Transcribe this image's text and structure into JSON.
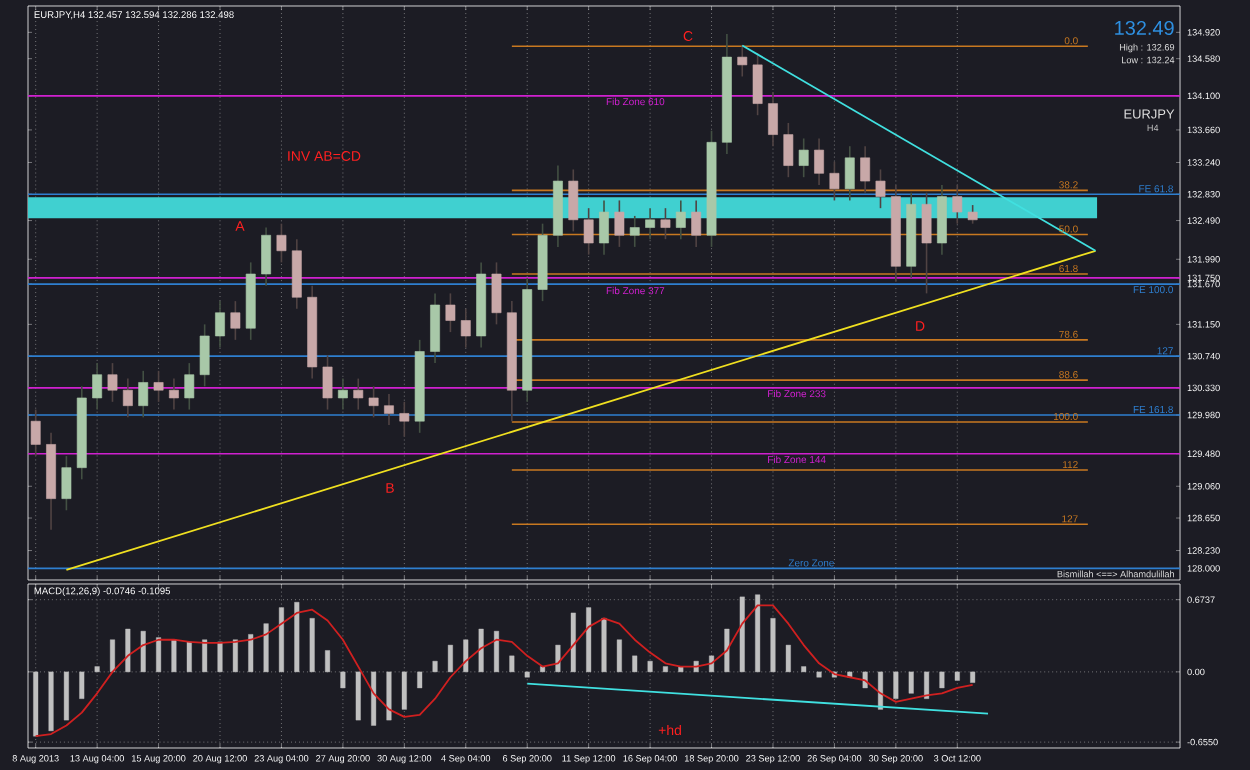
{
  "chart_data": [
    {
      "type": "candlestick",
      "title": "EURJPY,H4  132.457 132.594 132.286 132.498",
      "tick_labels": "y",
      "grid": "x",
      "categories": [
        null,
        null,
        null,
        null,
        null,
        null,
        null,
        null,
        null,
        null,
        null,
        null,
        null,
        null,
        null,
        null,
        null,
        null,
        null,
        null,
        null,
        null,
        null,
        null,
        null,
        null,
        null,
        null,
        null,
        null,
        null,
        null,
        null,
        null,
        null,
        null,
        null,
        null,
        null,
        null,
        null,
        null,
        null,
        null,
        null,
        null,
        null,
        null,
        null,
        null,
        null,
        null,
        null,
        null,
        null,
        null,
        null,
        null,
        null,
        null,
        null,
        null,
        null,
        null,
        null,
        null,
        null,
        null,
        null,
        null,
        null,
        null,
        null,
        null,
        null
      ],
      "ohlc": [
        [
          129.9,
          130.05,
          129.45,
          129.6
        ],
        [
          129.6,
          129.75,
          128.5,
          128.9
        ],
        [
          128.9,
          129.45,
          128.75,
          129.3
        ],
        [
          129.3,
          130.35,
          129.15,
          130.2
        ],
        [
          130.2,
          130.65,
          130.05,
          130.5
        ],
        [
          130.5,
          130.65,
          130.15,
          130.3
        ],
        [
          130.3,
          130.45,
          129.95,
          130.1
        ],
        [
          130.1,
          130.55,
          129.95,
          130.4
        ],
        [
          130.4,
          130.55,
          130.15,
          130.3
        ],
        [
          130.3,
          130.45,
          130.05,
          130.2
        ],
        [
          130.2,
          130.65,
          130.05,
          130.5
        ],
        [
          130.5,
          131.15,
          130.35,
          131.0
        ],
        [
          131.0,
          131.45,
          130.85,
          131.3
        ],
        [
          131.3,
          131.45,
          130.95,
          131.1
        ],
        [
          131.1,
          131.95,
          130.95,
          131.8
        ],
        [
          131.8,
          132.4,
          131.65,
          132.3
        ],
        [
          132.3,
          132.45,
          131.95,
          132.1
        ],
        [
          132.1,
          132.25,
          131.35,
          131.5
        ],
        [
          131.5,
          131.65,
          130.45,
          130.6
        ],
        [
          130.6,
          130.75,
          130.05,
          130.2
        ],
        [
          130.2,
          130.45,
          130.05,
          130.3
        ],
        [
          130.3,
          130.45,
          130.05,
          130.2
        ],
        [
          130.2,
          130.35,
          129.95,
          130.1
        ],
        [
          130.1,
          130.25,
          129.85,
          130.0
        ],
        [
          130.0,
          130.15,
          129.7,
          129.9
        ],
        [
          129.9,
          130.95,
          129.75,
          130.8
        ],
        [
          130.8,
          131.55,
          130.65,
          131.4
        ],
        [
          131.4,
          131.55,
          131.05,
          131.2
        ],
        [
          131.2,
          131.35,
          130.85,
          131.0
        ],
        [
          131.0,
          131.95,
          130.85,
          131.8
        ],
        [
          131.8,
          131.95,
          131.15,
          131.3
        ],
        [
          131.3,
          131.45,
          129.9,
          130.3
        ],
        [
          130.3,
          131.75,
          130.15,
          131.6
        ],
        [
          131.6,
          132.45,
          131.45,
          132.3
        ],
        [
          132.3,
          133.2,
          132.15,
          133.0
        ],
        [
          133.0,
          133.15,
          132.35,
          132.5
        ],
        [
          132.5,
          132.65,
          132.05,
          132.2
        ],
        [
          132.2,
          132.75,
          132.05,
          132.6
        ],
        [
          132.6,
          132.75,
          132.15,
          132.3
        ],
        [
          132.3,
          132.55,
          132.15,
          132.4
        ],
        [
          132.4,
          132.65,
          132.25,
          132.5
        ],
        [
          132.5,
          132.65,
          132.25,
          132.4
        ],
        [
          132.4,
          132.75,
          132.25,
          132.6
        ],
        [
          132.6,
          132.75,
          132.15,
          132.3
        ],
        [
          132.3,
          133.65,
          132.15,
          133.5
        ],
        [
          133.5,
          134.9,
          133.35,
          134.6
        ],
        [
          134.6,
          134.75,
          134.35,
          134.5
        ],
        [
          134.5,
          134.65,
          133.85,
          134.0
        ],
        [
          134.0,
          134.15,
          133.45,
          133.6
        ],
        [
          133.6,
          133.75,
          133.05,
          133.2
        ],
        [
          133.2,
          133.55,
          133.05,
          133.4
        ],
        [
          133.4,
          133.55,
          132.95,
          133.1
        ],
        [
          133.1,
          133.25,
          132.75,
          132.9
        ],
        [
          132.9,
          133.45,
          132.75,
          133.3
        ],
        [
          133.3,
          133.45,
          132.85,
          133.0
        ],
        [
          133.0,
          133.15,
          132.65,
          132.8
        ],
        [
          132.8,
          132.95,
          131.7,
          131.9
        ],
        [
          131.9,
          132.85,
          131.75,
          132.7
        ],
        [
          132.7,
          132.85,
          131.55,
          132.2
        ],
        [
          132.2,
          132.95,
          132.05,
          132.8
        ],
        [
          132.8,
          132.95,
          132.45,
          132.6
        ],
        [
          132.6,
          132.69,
          132.45,
          132.5
        ],
        null,
        null,
        null,
        null,
        null,
        null,
        null,
        null,
        null,
        null,
        null,
        null,
        null
      ],
      "colors": [
        "#c8a8a8",
        "#c8a8a8",
        "#a8c8a8",
        "#a8c8a8",
        "#a8c8a8",
        "#c8a8a8",
        "#c8a8a8",
        "#a8c8a8",
        "#c8a8a8",
        "#c8a8a8",
        "#a8c8a8",
        "#a8c8a8",
        "#a8c8a8",
        "#c8a8a8",
        "#a8c8a8",
        "#a8c8a8",
        "#c8a8a8",
        "#c8a8a8",
        "#c8a8a8",
        "#c8a8a8",
        "#a8c8a8",
        "#c8a8a8",
        "#c8a8a8",
        "#c8a8a8",
        "#c8a8a8",
        "#a8c8a8",
        "#a8c8a8",
        "#c8a8a8",
        "#c8a8a8",
        "#a8c8a8",
        "#c8a8a8",
        "#c8a8a8",
        "#a8c8a8",
        "#a8c8a8",
        "#a8c8a8",
        "#c8a8a8",
        "#c8a8a8",
        "#a8c8a8",
        "#c8a8a8",
        "#a8c8a8",
        "#a8c8a8",
        "#c8a8a8",
        "#a8c8a8",
        "#c8a8a8",
        "#a8c8a8",
        "#a8c8a8",
        "#c8a8a8",
        "#c8a8a8",
        "#c8a8a8",
        "#c8a8a8",
        "#a8c8a8",
        "#c8a8a8",
        "#c8a8a8",
        "#a8c8a8",
        "#c8a8a8",
        "#c8a8a8",
        "#c8a8a8",
        "#a8c8a8",
        "#c8a8a8",
        "#a8c8a8",
        "#c8a8a8",
        "#c8a8a8",
        null,
        null,
        null,
        null,
        null,
        null,
        null,
        null,
        null,
        null,
        null,
        null,
        null
      ],
      "series": [
        {
          "type": "line",
          "color": "#f0e020",
          "values": [
            null,
            null,
            127.98,
            null,
            null,
            null,
            null,
            null,
            null,
            null,
            null,
            null,
            null,
            null,
            null,
            null,
            null,
            null,
            null,
            null,
            null,
            null,
            null,
            null,
            null,
            null,
            null,
            null,
            null,
            null,
            null,
            null,
            null,
            null,
            null,
            null,
            null,
            null,
            null,
            null,
            null,
            null,
            null,
            null,
            null,
            null,
            null,
            null,
            null,
            null,
            null,
            null,
            null,
            null,
            null,
            null,
            null,
            null,
            null,
            null,
            null,
            null,
            null,
            null,
            null,
            null,
            null,
            null,
            null,
            132.1,
            null,
            null,
            null,
            null,
            null
          ]
        },
        {
          "type": "line",
          "color": "#40e0e0",
          "values": [
            null,
            null,
            null,
            null,
            null,
            null,
            null,
            null,
            null,
            null,
            null,
            null,
            null,
            null,
            null,
            null,
            null,
            null,
            null,
            null,
            null,
            null,
            null,
            null,
            null,
            null,
            null,
            null,
            null,
            null,
            null,
            null,
            null,
            null,
            null,
            null,
            null,
            null,
            null,
            null,
            null,
            null,
            null,
            null,
            null,
            null,
            134.75,
            null,
            null,
            null,
            null,
            null,
            null,
            null,
            null,
            null,
            null,
            null,
            null,
            null,
            null,
            null,
            null,
            null,
            null,
            null,
            null,
            null,
            null,
            132.1,
            null,
            null,
            null,
            null,
            null
          ]
        }
      ],
      "ylim": [
        127.85,
        135.26
      ],
      "yticks": [
        {
          "value": 134.92,
          "label": "134.920"
        },
        {
          "value": 134.58,
          "label": "134.580"
        },
        {
          "value": 134.1,
          "label": "134.100"
        },
        {
          "value": 133.66,
          "label": "133.660"
        },
        {
          "value": 133.24,
          "label": "133.240"
        },
        {
          "value": 132.83,
          "label": "132.830"
        },
        {
          "value": 132.49,
          "label": "132.490"
        },
        {
          "value": 131.99,
          "label": "131.990"
        },
        {
          "value": 131.75,
          "label": "131.750"
        },
        {
          "value": 131.67,
          "label": "131.670"
        },
        {
          "value": 131.15,
          "label": "131.150"
        },
        {
          "value": 130.74,
          "label": "130.740"
        },
        {
          "value": 130.33,
          "label": "130.330"
        },
        {
          "value": 129.98,
          "label": "129.980"
        },
        {
          "value": 129.48,
          "label": "129.480"
        },
        {
          "value": 129.06,
          "label": "129.060"
        },
        {
          "value": 128.65,
          "label": "128.650"
        },
        {
          "value": 128.23,
          "label": "128.230"
        },
        {
          "value": 128.0,
          "label": "128.000"
        }
      ],
      "bands": [
        {
          "axis": "y",
          "from": 132.52,
          "to": 132.79,
          "color": "#40d0d0"
        }
      ],
      "ref_lines": [
        {
          "axis": "y",
          "value": 134.74,
          "color": "#c87820"
        },
        {
          "axis": "y",
          "value": 132.88,
          "color": "#c87820"
        },
        {
          "axis": "y",
          "value": 132.31,
          "color": "#c87820"
        },
        {
          "axis": "y",
          "value": 131.8,
          "color": "#c87820"
        },
        {
          "axis": "y",
          "value": 130.95,
          "color": "#c87820"
        },
        {
          "axis": "y",
          "value": 130.43,
          "color": "#c87820"
        },
        {
          "axis": "y",
          "value": 129.89,
          "color": "#c87820"
        },
        {
          "axis": "y",
          "value": 129.27,
          "color": "#c87820"
        },
        {
          "axis": "y",
          "value": 128.57,
          "color": "#c87820"
        },
        {
          "axis": "y",
          "value": 132.83,
          "label": "FE 61.8",
          "color": "#2e7fd0"
        },
        {
          "axis": "y",
          "value": 131.67,
          "label": "FE 100.0",
          "color": "#2e7fd0"
        },
        {
          "axis": "y",
          "value": 130.74,
          "color": "#2e7fd0"
        },
        {
          "axis": "y",
          "value": 129.98,
          "label": "FE 161.8",
          "color": "#2e7fd0"
        },
        {
          "axis": "y",
          "value": 128.0,
          "label": "Zero Zone",
          "color": "#2e7fd0"
        },
        {
          "axis": "y",
          "value": 134.1,
          "label": "Fib Zone 610",
          "color": "#d020d0"
        },
        {
          "axis": "y",
          "value": 131.75,
          "label": "Fib Zone 377",
          "color": "#d020d0"
        },
        {
          "axis": "y",
          "value": 130.33,
          "label": "Fib Zone 233",
          "color": "#d020d0"
        },
        {
          "axis": "y",
          "value": 129.48,
          "label": "Fib Zone 144",
          "color": "#d020d0"
        }
      ],
      "annotations": [
        "INV AB=CD",
        "A",
        "B",
        "C",
        "D",
        "132.49",
        "High : 132.69",
        "Low : 132.24",
        "EURJPY",
        "H4",
        "Bismillah <==> Alhamdulillah",
        {
          "text": "0.0",
          "y": 134.74
        },
        {
          "text": "38.2",
          "y": 132.88
        },
        {
          "text": "50.0",
          "y": 132.31
        },
        {
          "text": "61.8",
          "y": 131.8
        },
        {
          "text": "78.6",
          "y": 130.95
        },
        {
          "text": "88.6",
          "y": 130.43
        },
        {
          "text": "100.0",
          "y": 129.89
        },
        {
          "text": "112",
          "y": 129.27
        },
        {
          "text": "127",
          "y": 128.57
        },
        {
          "text": "127",
          "y": 130.74
        }
      ]
    },
    {
      "type": "bar",
      "title": "MACD(12,26,9) -0.0746 -0.1095",
      "grid": true,
      "categories": [
        "8 Aug 2013",
        null,
        null,
        null,
        "13 Aug 04:00",
        null,
        null,
        null,
        "15 Aug 20:00",
        null,
        null,
        null,
        "20 Aug 12:00",
        null,
        null,
        null,
        "23 Aug 04:00",
        null,
        null,
        null,
        "27 Aug 20:00",
        null,
        null,
        null,
        "30 Aug 12:00",
        null,
        null,
        null,
        "4 Sep 04:00",
        null,
        null,
        null,
        "6 Sep 20:00",
        null,
        null,
        null,
        "11 Sep 12:00",
        null,
        null,
        null,
        "16 Sep 04:00",
        null,
        null,
        null,
        "18 Sep 20:00",
        null,
        null,
        null,
        "23 Sep 12:00",
        null,
        null,
        null,
        "26 Sep 04:00",
        null,
        null,
        null,
        "30 Sep 20:00",
        null,
        null,
        null,
        "3 Oct 12:00",
        null,
        null,
        null,
        null,
        null,
        null,
        null,
        null,
        null,
        null,
        null,
        null,
        null,
        null
      ],
      "series": [
        {
          "type": "bar",
          "color": "#c0c0c0",
          "values": [
            -0.6,
            -0.55,
            -0.45,
            -0.25,
            0.05,
            0.3,
            0.4,
            0.38,
            0.32,
            0.3,
            0.28,
            0.3,
            0.28,
            0.3,
            0.35,
            0.45,
            0.6,
            0.65,
            0.5,
            0.2,
            -0.15,
            -0.45,
            -0.5,
            -0.45,
            -0.35,
            -0.15,
            0.1,
            0.25,
            0.3,
            0.4,
            0.38,
            0.15,
            -0.05,
            0.05,
            0.25,
            0.55,
            0.6,
            0.5,
            0.3,
            0.15,
            0.1,
            0.05,
            0.05,
            0.1,
            0.15,
            0.4,
            0.7,
            0.72,
            0.5,
            0.25,
            0.05,
            -0.05,
            -0.05,
            -0.05,
            -0.15,
            -0.35,
            -0.25,
            -0.2,
            -0.25,
            -0.15,
            -0.08,
            -0.1,
            null,
            null,
            null,
            null,
            null,
            null,
            null,
            null,
            null,
            null,
            null,
            null,
            null
          ]
        },
        {
          "type": "line",
          "color": "#d02020",
          "values": [
            -0.6,
            -0.58,
            -0.5,
            -0.38,
            -0.2,
            0.0,
            0.15,
            0.25,
            0.3,
            0.3,
            0.28,
            0.27,
            0.27,
            0.28,
            0.3,
            0.35,
            0.45,
            0.55,
            0.58,
            0.48,
            0.3,
            0.05,
            -0.2,
            -0.35,
            -0.42,
            -0.4,
            -0.25,
            -0.05,
            0.1,
            0.22,
            0.3,
            0.28,
            0.15,
            0.05,
            0.08,
            0.25,
            0.42,
            0.5,
            0.45,
            0.3,
            0.18,
            0.08,
            0.05,
            0.05,
            0.08,
            0.2,
            0.45,
            0.62,
            0.62,
            0.45,
            0.25,
            0.08,
            -0.02,
            -0.05,
            -0.08,
            -0.2,
            -0.28,
            -0.25,
            -0.22,
            -0.2,
            -0.15,
            -0.12,
            null,
            null,
            null,
            null,
            null,
            null,
            null,
            null,
            null,
            null,
            null,
            null,
            null
          ]
        },
        {
          "type": "line",
          "color": "#40e0e0",
          "values": [
            null,
            null,
            null,
            null,
            null,
            null,
            null,
            null,
            null,
            null,
            null,
            null,
            null,
            null,
            null,
            null,
            null,
            null,
            null,
            null,
            null,
            null,
            null,
            null,
            null,
            null,
            null,
            null,
            null,
            null,
            null,
            null,
            -0.11,
            null,
            null,
            null,
            null,
            null,
            null,
            null,
            null,
            null,
            null,
            null,
            null,
            null,
            null,
            null,
            null,
            null,
            null,
            null,
            null,
            null,
            null,
            null,
            null,
            null,
            null,
            null,
            null,
            null,
            -0.39,
            null,
            null,
            null,
            null,
            null,
            null,
            null,
            null,
            null,
            null,
            null,
            null
          ]
        }
      ],
      "ylim": [
        -0.71,
        0.82
      ],
      "yticks": [
        {
          "value": 0.6737,
          "label": "0.6737"
        },
        {
          "value": 0,
          "label": "0.00"
        },
        {
          "value": -0.655,
          "label": "-0.6550"
        }
      ],
      "annotations": [
        "+hd"
      ]
    }
  ]
}
